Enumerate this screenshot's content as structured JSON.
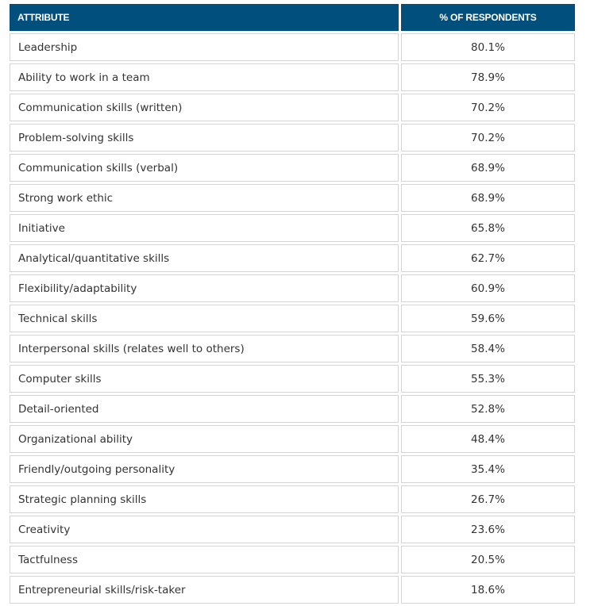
{
  "table": {
    "headers": [
      "ATTRIBUTE",
      "% OF RESPONDENTS"
    ],
    "rows": [
      [
        "Leadership",
        "80.1%"
      ],
      [
        "Ability to work in a team",
        "78.9%"
      ],
      [
        "Communication skills (written)",
        "70.2%"
      ],
      [
        "Problem-solving skills",
        "70.2%"
      ],
      [
        "Communication skills (verbal)",
        "68.9%"
      ],
      [
        "Strong work ethic",
        "68.9%"
      ],
      [
        "Initiative",
        "65.8%"
      ],
      [
        "Analytical/quantitative skills",
        "62.7%"
      ],
      [
        "Flexibility/adaptability",
        "60.9%"
      ],
      [
        "Technical skills",
        "59.6%"
      ],
      [
        "Interpersonal skills (relates well to others)",
        "58.4%"
      ],
      [
        "Computer skills",
        "55.3%"
      ],
      [
        "Detail-oriented",
        "52.8%"
      ],
      [
        "Organizational ability",
        "48.4%"
      ],
      [
        "Friendly/outgoing personality",
        "35.4%"
      ],
      [
        "Strategic planning skills",
        "26.7%"
      ],
      [
        "Creativity",
        "23.6%"
      ],
      [
        "Tactfulness",
        "20.5%"
      ],
      [
        "Entrepreneurial skills/risk-taker",
        "18.6%"
      ]
    ]
  },
  "colors": {
    "header_bg": "#014f7c",
    "header_text": "#ffffff",
    "cell_border": "#d4d4d4",
    "cell_text": "#333333"
  }
}
